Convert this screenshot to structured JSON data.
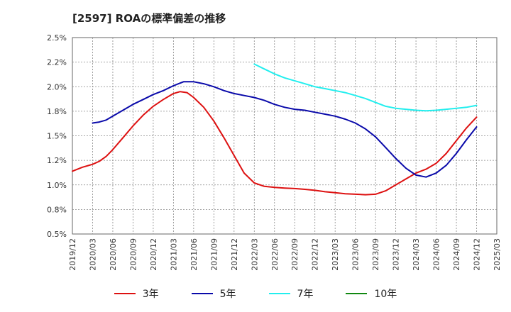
{
  "title": "[2597]  ROAの標準偏差の推移",
  "chart_data": {
    "type": "line",
    "title": "[2597]  ROAの標準偏差の推移",
    "x_labels": [
      "2019/12",
      "2020/03",
      "2020/06",
      "2020/09",
      "2020/12",
      "2021/03",
      "2021/06",
      "2021/09",
      "2021/12",
      "2022/03",
      "2022/06",
      "2022/09",
      "2022/12",
      "2023/03",
      "2023/06",
      "2023/09",
      "2023/12",
      "2024/03",
      "2024/06",
      "2024/09",
      "2024/12",
      "2025/03"
    ],
    "y_ticks": [
      "0.5%",
      "0.8%",
      "1.0%",
      "1.2%",
      "1.5%",
      "1.8%",
      "2.0%",
      "2.2%",
      "2.5%"
    ],
    "ylim": [
      0.5,
      2.5
    ],
    "grid": true,
    "legend_position": "bottom",
    "series": [
      {
        "name": "3年",
        "color": "#dd1111",
        "x": [
          0,
          0.5,
          1,
          1.33,
          1.67,
          2,
          2.5,
          3,
          3.5,
          4,
          4.5,
          5,
          5.33,
          5.67,
          6,
          6.5,
          7,
          7.5,
          8,
          8.5,
          9,
          9.5,
          10,
          10.5,
          11,
          11.5,
          12,
          12.5,
          13,
          13.5,
          14,
          14.5,
          15,
          15.5,
          16,
          16.5,
          17,
          17.5,
          18,
          18.5,
          19,
          19.5,
          20
        ],
        "y": [
          1.14,
          1.18,
          1.21,
          1.24,
          1.29,
          1.36,
          1.48,
          1.6,
          1.71,
          1.8,
          1.87,
          1.93,
          1.95,
          1.94,
          1.89,
          1.79,
          1.65,
          1.48,
          1.3,
          1.12,
          1.02,
          0.985,
          0.975,
          0.968,
          0.963,
          0.955,
          0.945,
          0.93,
          0.92,
          0.91,
          0.905,
          0.9,
          0.905,
          0.94,
          1.0,
          1.06,
          1.12,
          1.16,
          1.22,
          1.32,
          1.45,
          1.58,
          1.69
        ]
      },
      {
        "name": "5年",
        "color": "#0a0aaa",
        "x": [
          1,
          1.33,
          1.67,
          2,
          2.5,
          3,
          3.5,
          4,
          4.5,
          5,
          5.5,
          6,
          6.5,
          7,
          7.5,
          8,
          8.5,
          9,
          9.5,
          10,
          10.5,
          11,
          11.5,
          12,
          12.5,
          13,
          13.5,
          14,
          14.5,
          15,
          15.5,
          16,
          16.5,
          17,
          17.5,
          18,
          18.5,
          19,
          19.5,
          20
        ],
        "y": [
          1.63,
          1.64,
          1.66,
          1.7,
          1.76,
          1.82,
          1.87,
          1.92,
          1.96,
          2.01,
          2.05,
          2.05,
          2.03,
          2.0,
          1.96,
          1.93,
          1.91,
          1.89,
          1.86,
          1.82,
          1.79,
          1.77,
          1.76,
          1.74,
          1.72,
          1.7,
          1.67,
          1.63,
          1.57,
          1.49,
          1.38,
          1.27,
          1.17,
          1.1,
          1.08,
          1.12,
          1.2,
          1.32,
          1.46,
          1.59
        ]
      },
      {
        "name": "7年",
        "color": "#22eeee",
        "x": [
          9,
          9.5,
          10,
          10.5,
          11,
          11.5,
          12,
          12.5,
          13,
          13.5,
          14,
          14.5,
          15,
          15.5,
          16,
          16.5,
          17,
          17.5,
          18,
          18.5,
          19,
          19.5,
          20
        ],
        "y": [
          2.23,
          2.18,
          2.13,
          2.09,
          2.06,
          2.03,
          2.0,
          1.98,
          1.96,
          1.94,
          1.91,
          1.88,
          1.84,
          1.8,
          1.78,
          1.77,
          1.76,
          1.755,
          1.76,
          1.77,
          1.78,
          1.79,
          1.81
        ]
      },
      {
        "name": "10年",
        "color": "#118811",
        "x": [],
        "y": []
      }
    ]
  }
}
